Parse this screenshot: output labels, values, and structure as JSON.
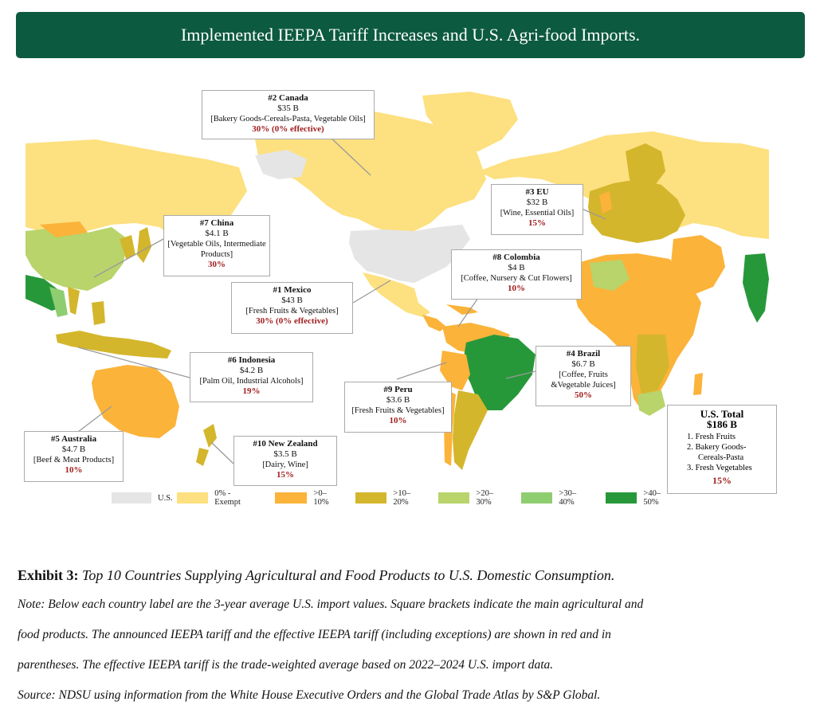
{
  "header": {
    "title": "Implemented IEEPA Tariff Increases and U.S. Agri-food Imports."
  },
  "colors": {
    "us": "#e5e5e5",
    "exempt": "#fde07f",
    "t0_10": "#fbb33a",
    "t10_20": "#d4b62c",
    "t20_30": "#b8d46b",
    "t30_40": "#8fcd71",
    "t40_50": "#27983a",
    "banner": "#0c5a3f",
    "tariff_text": "#a11d1d"
  },
  "callouts": {
    "canada": {
      "name": "#2 Canada",
      "value": "$35 B",
      "products": "[Bakery Goods-Cereals-Pasta, Vegetable Oils]",
      "tariff": "30% (0% effective)"
    },
    "eu": {
      "name": "#3 EU",
      "value": "$32 B",
      "products": "[Wine,  Essential Oils]",
      "tariff": "15%"
    },
    "china": {
      "name": "#7 China",
      "value": "$4.1 B",
      "products": "[Vegetable Oils, Intermediate Products]",
      "tariff": "30%"
    },
    "colombia": {
      "name": "#8 Colombia",
      "value": "$4 B",
      "products": "[Coffee, Nursery &  Cut Flowers]",
      "tariff": "10%"
    },
    "mexico": {
      "name": "#1 Mexico",
      "value": "$43 B",
      "products": "[Fresh Fruits & Vegetables]",
      "tariff": "30% (0% effective)"
    },
    "indonesia": {
      "name": "#6 Indonesia",
      "value": "$4.2 B",
      "products": "[Palm Oil, Industrial Alcohols]",
      "tariff": "19%"
    },
    "brazil": {
      "name": "#4 Brazil",
      "value": "$6.7 B",
      "products": "[Coffee, Fruits &Vegetable Juices]",
      "tariff": "50%"
    },
    "peru": {
      "name": "#9 Peru",
      "value": "$3.6 B",
      "products": "[Fresh Fruits & Vegetables]",
      "tariff": "10%"
    },
    "australia": {
      "name": "#5 Australia",
      "value": "$4.7 B",
      "products": "[Beef & Meat Products]",
      "tariff": "10%"
    },
    "newzealand": {
      "name": "#10 New Zealand",
      "value": "$3.5 B",
      "products": "[Dairy, Wine]",
      "tariff": "15%"
    }
  },
  "us_total": {
    "title": "U.S. Total",
    "value": "$186 B",
    "items": [
      "1.    Fresh Fruits",
      "2.    Bakery Goods-",
      "Cereals-Pasta",
      "3.    Fresh Vegetables"
    ],
    "tariff": "15%"
  },
  "legend": [
    "U.S.",
    "0% - Exempt",
    ">0–10%",
    ">10–20%",
    ">20–30%",
    ">30–40%",
    ">40–50%"
  ],
  "caption": {
    "label": "Exhibit 3:",
    "title": "Top 10 Countries Supplying Agricultural and Food Products to U.S. Domestic Consumption.",
    "note1": "Note: Below each country label are the 3-year average U.S. import values. Square brackets indicate the main agricultural and",
    "note2": "food products. The announced IEEPA tariff and the effective IEEPA tariff (including exceptions) are shown in red and in",
    "note3": "parentheses. The effective IEEPA tariff is the trade-weighted average based on 2022–2024 U.S. import data.",
    "source": "Source: NDSU using information from the White House Executive Orders and the Global Trade Atlas by S&P Global."
  }
}
